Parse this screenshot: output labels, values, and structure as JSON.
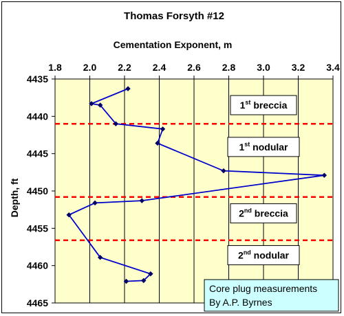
{
  "chart_data": {
    "type": "line",
    "title": "Thomas Forsyth #12",
    "xlabel": "Cementation Exponent, m",
    "ylabel": "Depth, ft",
    "xlim": [
      1.8,
      3.4
    ],
    "ylim": [
      4435,
      4465
    ],
    "y_inverted": true,
    "x_axis_position": "top",
    "xticks": [
      "1.8",
      "2.0",
      "2.2",
      "2.4",
      "2.6",
      "2.8",
      "3.0",
      "3.2",
      "3.4"
    ],
    "yticks": [
      "4435",
      "4440",
      "4445",
      "4450",
      "4455",
      "4460",
      "4465"
    ],
    "grid": "vertical",
    "plot_background": "#FFFFCC",
    "series": [
      {
        "color": "#0000CC",
        "marker": "diamond",
        "points": [
          {
            "x": 2.22,
            "y": 4436.3
          },
          {
            "x": 2.01,
            "y": 4438.3
          },
          {
            "x": 2.06,
            "y": 4438.5
          },
          {
            "x": 2.15,
            "y": 4441.0
          },
          {
            "x": 2.42,
            "y": 4441.7
          },
          {
            "x": 2.39,
            "y": 4443.6
          },
          {
            "x": 2.77,
            "y": 4447.3
          },
          {
            "x": 3.35,
            "y": 4447.9
          },
          {
            "x": 2.3,
            "y": 4451.3
          },
          {
            "x": 2.03,
            "y": 4451.6
          },
          {
            "x": 1.88,
            "y": 4453.2
          },
          {
            "x": 2.06,
            "y": 4458.9
          },
          {
            "x": 2.35,
            "y": 4461.1
          },
          {
            "x": 2.31,
            "y": 4462.0
          },
          {
            "x": 2.21,
            "y": 4462.1
          }
        ]
      }
    ],
    "boundaries": [
      4441.0,
      4450.8,
      4456.6
    ],
    "boundary_color": "#FF0000",
    "zones": [
      {
        "num": "1",
        "sup": "st",
        "name": "breccia",
        "depth": 4438.5
      },
      {
        "num": "1",
        "sup": "st",
        "name": "nodular",
        "depth": 4444.1
      },
      {
        "num": "2",
        "sup": "nd",
        "name": "breccia",
        "depth": 4453.0
      },
      {
        "num": "2",
        "sup": "nd",
        "name": "nodular",
        "depth": 4458.6
      }
    ],
    "annotation": {
      "lines": [
        "Core plug measurements",
        "By A.P. Byrnes"
      ],
      "background": "#CCFFFF"
    }
  }
}
